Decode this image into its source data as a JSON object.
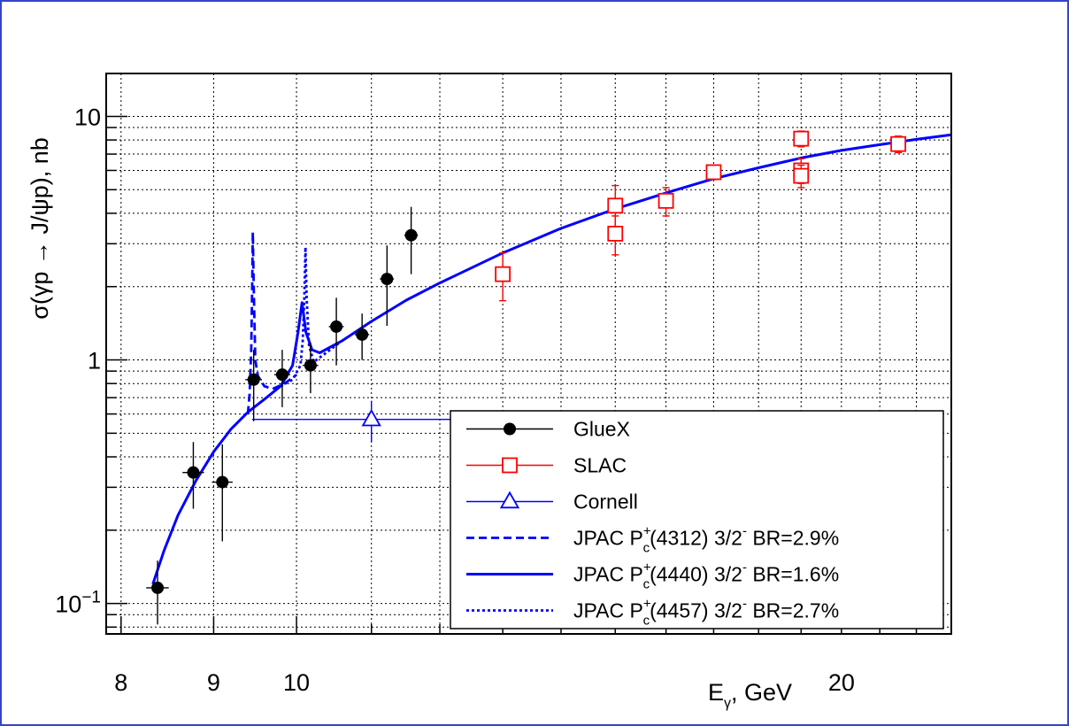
{
  "chart_data": {
    "type": "scatter",
    "title": "",
    "xlabel": "E",
    "xlabel_sub": "γ",
    "xlabel_unit": ", GeV",
    "ylabel": "σ(γp → J/ψp), nb",
    "xscale": "log",
    "yscale": "log",
    "xlim": [
      7.85,
      23.0
    ],
    "ylim": [
      0.075,
      15.0
    ],
    "grid": true,
    "legend_position": "bottom-right",
    "x_ticks": [
      {
        "value": 8,
        "label": "8"
      },
      {
        "value": 9,
        "label": "9"
      },
      {
        "value": 10,
        "label": "10"
      },
      {
        "value": 20,
        "label": "20"
      }
    ],
    "y_ticks": [
      {
        "value": 10,
        "label": "10"
      },
      {
        "value": 1,
        "label": "1"
      },
      {
        "value": 0.1,
        "label": "10",
        "sup": "−1"
      }
    ],
    "series": [
      {
        "name": "GlueX",
        "kind": "points",
        "color": "#000000",
        "marker": "filled-circle",
        "points": [
          {
            "x": 8.38,
            "y": 0.116,
            "xerr": 0.12,
            "ylo": 0.082,
            "yhi": 0.15
          },
          {
            "x": 8.77,
            "y": 0.345,
            "xerr": 0.12,
            "ylo": 0.245,
            "yhi": 0.46
          },
          {
            "x": 9.1,
            "y": 0.315,
            "xerr": 0.12,
            "ylo": 0.18,
            "yhi": 0.45
          },
          {
            "x": 9.47,
            "y": 0.83,
            "xerr": 0.1,
            "ylo": 0.56,
            "yhi": 1.1
          },
          {
            "x": 9.82,
            "y": 0.87,
            "xerr": 0.1,
            "ylo": 0.64,
            "yhi": 1.1
          },
          {
            "x": 10.18,
            "y": 0.95,
            "xerr": 0.1,
            "ylo": 0.73,
            "yhi": 1.18
          },
          {
            "x": 10.52,
            "y": 1.37,
            "xerr": 0.1,
            "ylo": 0.95,
            "yhi": 1.8
          },
          {
            "x": 10.87,
            "y": 1.27,
            "xerr": 0.1,
            "ylo": 1.0,
            "yhi": 1.55
          },
          {
            "x": 11.22,
            "y": 2.15,
            "xerr": 0.1,
            "ylo": 1.38,
            "yhi": 2.95
          },
          {
            "x": 11.57,
            "y": 3.25,
            "xerr": 0.1,
            "ylo": 2.25,
            "yhi": 4.25
          }
        ]
      },
      {
        "name": "SLAC",
        "kind": "points",
        "color": "#ff0000",
        "marker": "open-square",
        "points": [
          {
            "x": 13.0,
            "y": 2.25,
            "ylo": 1.75,
            "yhi": 2.75
          },
          {
            "x": 15.0,
            "y": 4.3,
            "ylo": 3.4,
            "yhi": 5.2
          },
          {
            "x": 15.0,
            "y": 3.3,
            "ylo": 2.7,
            "yhi": 3.9
          },
          {
            "x": 16.0,
            "y": 4.5,
            "ylo": 3.9,
            "yhi": 5.1
          },
          {
            "x": 17.0,
            "y": 5.9,
            "ylo": 5.5,
            "yhi": 6.3
          },
          {
            "x": 19.0,
            "y": 8.1,
            "ylo": 7.5,
            "yhi": 8.7
          },
          {
            "x": 19.0,
            "y": 6.0,
            "ylo": 5.3,
            "yhi": 6.7
          },
          {
            "x": 19.0,
            "y": 5.7,
            "ylo": 5.1,
            "yhi": 6.3
          },
          {
            "x": 21.5,
            "y": 7.7,
            "ylo": 7.1,
            "yhi": 8.3
          }
        ]
      },
      {
        "name": "Cornell",
        "kind": "points",
        "color": "#0000ff",
        "marker": "open-triangle",
        "points": [
          {
            "x": 11.0,
            "y": 0.57,
            "xlo": 9.45,
            "xhi": 12.22,
            "ylo": 0.46,
            "yhi": 0.68
          }
        ]
      },
      {
        "name": "JPAC P",
        "name_sup": "+",
        "name_sub": "c",
        "name_rest": "(4312) 3/2",
        "name_rest_sup": "-",
        "name_tail": " BR=2.9%",
        "kind": "line",
        "style": "dashed",
        "color": "#0000ff",
        "points": [
          {
            "x": 9.4,
            "y": 0.6
          },
          {
            "x": 9.42,
            "y": 0.72
          },
          {
            "x": 9.44,
            "y": 1.1
          },
          {
            "x": 9.45,
            "y": 1.8
          },
          {
            "x": 9.46,
            "y": 3.35
          },
          {
            "x": 9.47,
            "y": 2.0
          },
          {
            "x": 9.49,
            "y": 1.0
          },
          {
            "x": 9.52,
            "y": 0.86
          },
          {
            "x": 9.6,
            "y": 0.78
          },
          {
            "x": 9.7,
            "y": 0.76
          },
          {
            "x": 9.85,
            "y": 0.8
          },
          {
            "x": 10.0,
            "y": 0.87
          }
        ]
      },
      {
        "name": "JPAC P",
        "name_sup": "+",
        "name_sub": "c",
        "name_rest": "(4440) 3/2",
        "name_rest_sup": "-",
        "name_tail": " BR=1.6%",
        "kind": "line",
        "style": "solid",
        "color": "#0000ff",
        "points": [
          {
            "x": 8.33,
            "y": 0.12
          },
          {
            "x": 8.45,
            "y": 0.165
          },
          {
            "x": 8.6,
            "y": 0.23
          },
          {
            "x": 8.8,
            "y": 0.32
          },
          {
            "x": 9.0,
            "y": 0.42
          },
          {
            "x": 9.2,
            "y": 0.52
          },
          {
            "x": 9.4,
            "y": 0.61
          },
          {
            "x": 9.6,
            "y": 0.69
          },
          {
            "x": 9.8,
            "y": 0.78
          },
          {
            "x": 9.95,
            "y": 0.95
          },
          {
            "x": 10.02,
            "y": 1.3
          },
          {
            "x": 10.07,
            "y": 1.72
          },
          {
            "x": 10.12,
            "y": 1.3
          },
          {
            "x": 10.2,
            "y": 1.1
          },
          {
            "x": 10.3,
            "y": 1.07
          },
          {
            "x": 10.6,
            "y": 1.2
          },
          {
            "x": 11.0,
            "y": 1.44
          },
          {
            "x": 11.5,
            "y": 1.76
          },
          {
            "x": 12.0,
            "y": 2.07
          },
          {
            "x": 13.0,
            "y": 2.75
          },
          {
            "x": 14.0,
            "y": 3.47
          },
          {
            "x": 15.0,
            "y": 4.17
          },
          {
            "x": 16.0,
            "y": 4.85
          },
          {
            "x": 17.0,
            "y": 5.55
          },
          {
            "x": 18.0,
            "y": 6.15
          },
          {
            "x": 19.0,
            "y": 6.75
          },
          {
            "x": 20.0,
            "y": 7.25
          },
          {
            "x": 21.0,
            "y": 7.65
          },
          {
            "x": 22.0,
            "y": 8.05
          },
          {
            "x": 23.0,
            "y": 8.4
          }
        ]
      },
      {
        "name": "JPAC P",
        "name_sup": "+",
        "name_sub": "c",
        "name_rest": "(4457) 3/2",
        "name_rest_sup": "-",
        "name_tail": " BR=2.7%",
        "kind": "line",
        "style": "dotted",
        "color": "#0000ff",
        "points": [
          {
            "x": 9.8,
            "y": 0.78
          },
          {
            "x": 9.95,
            "y": 0.83
          },
          {
            "x": 10.05,
            "y": 0.95
          },
          {
            "x": 10.08,
            "y": 1.2
          },
          {
            "x": 10.1,
            "y": 1.8
          },
          {
            "x": 10.115,
            "y": 2.9
          },
          {
            "x": 10.13,
            "y": 1.8
          },
          {
            "x": 10.16,
            "y": 1.15
          },
          {
            "x": 10.22,
            "y": 0.98
          },
          {
            "x": 10.35,
            "y": 1.05
          },
          {
            "x": 10.55,
            "y": 1.17
          }
        ]
      }
    ]
  }
}
